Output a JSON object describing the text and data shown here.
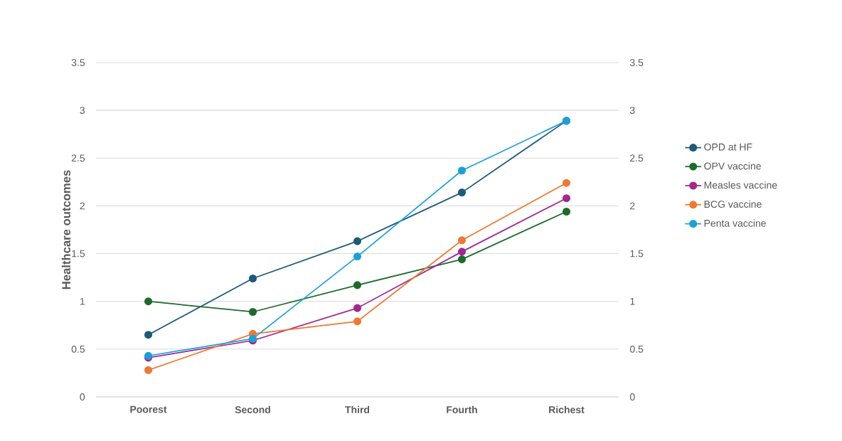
{
  "chart_data": {
    "type": "line",
    "ylabel": "Healthcare outcomes",
    "categories": [
      "Poorest",
      "Second",
      "Third",
      "Fourth",
      "Richest"
    ],
    "series": [
      {
        "name": "OPD  at HF",
        "color": "#1b5a7a",
        "values": [
          0.65,
          1.24,
          1.63,
          2.14,
          2.89
        ]
      },
      {
        "name": "OPV vaccine",
        "color": "#1d6b2b",
        "values": [
          1.0,
          0.89,
          1.17,
          1.44,
          1.94
        ]
      },
      {
        "name": "Measles vaccine",
        "color": "#a0288f",
        "values": [
          0.41,
          0.59,
          0.93,
          1.52,
          2.08
        ]
      },
      {
        "name": "BCG vaccine",
        "color": "#ee7a31",
        "values": [
          0.28,
          0.66,
          0.79,
          1.64,
          2.24
        ]
      },
      {
        "name": "Penta vaccine",
        "color": "#1ba1d8",
        "values": [
          0.43,
          0.61,
          1.47,
          2.37,
          2.89
        ]
      }
    ],
    "ylim": [
      0,
      3.5
    ],
    "yticks": [
      0,
      0.5,
      1,
      1.5,
      2,
      2.5,
      3,
      3.5
    ],
    "y2lim": [
      0,
      3.5
    ],
    "y2ticks": [
      0,
      0.5,
      1,
      1.5,
      2,
      2.5,
      3,
      3.5
    ],
    "grid": "y",
    "legend": "right",
    "marker": "circle",
    "line_style": "solid"
  }
}
